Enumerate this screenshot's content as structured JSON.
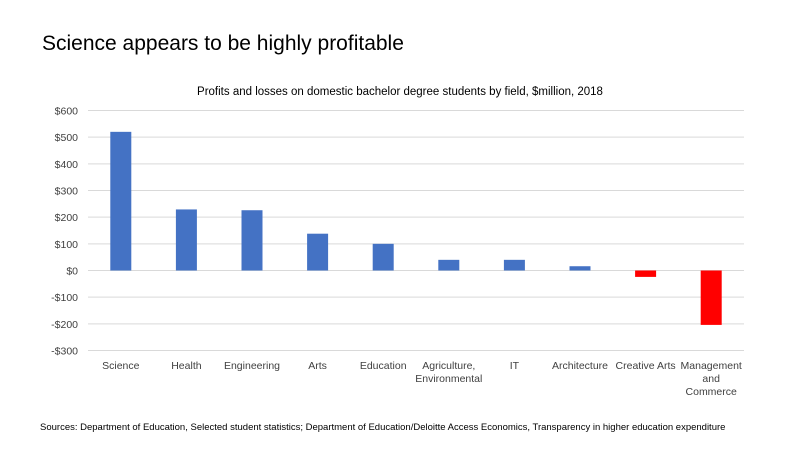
{
  "slide_title": "Science appears to be highly profitable",
  "sources": "Sources: Department of Education, Selected student statistics; Department of Education/Deloitte Access Economics, Transparency in higher education expenditure",
  "chart_data": {
    "type": "bar",
    "title": "Profits and losses on domestic bachelor degree students by field, $million, 2018",
    "categories": [
      [
        "Science"
      ],
      [
        "Health"
      ],
      [
        "Engineering"
      ],
      [
        "Arts"
      ],
      [
        "Education"
      ],
      [
        "Agriculture,",
        "Environmental"
      ],
      [
        "IT"
      ],
      [
        "Architecture"
      ],
      [
        "Creative Arts"
      ],
      [
        "Management",
        "and",
        "Commerce"
      ]
    ],
    "values": [
      520,
      229,
      226,
      138,
      100,
      40,
      40,
      16,
      -24,
      -204
    ],
    "ylim": [
      -300,
      600
    ],
    "yticks": [
      600,
      500,
      400,
      300,
      200,
      100,
      0,
      -100,
      -200,
      -300
    ],
    "ytick_labels": [
      "$600",
      "$500",
      "$400",
      "$300",
      "$200",
      "$100",
      "$0",
      "-$100",
      "-$200",
      "-$300"
    ],
    "grid": true,
    "colors": {
      "positive": "#4472C4",
      "negative": "#FF0000",
      "grid": "#D9D9D9"
    }
  }
}
